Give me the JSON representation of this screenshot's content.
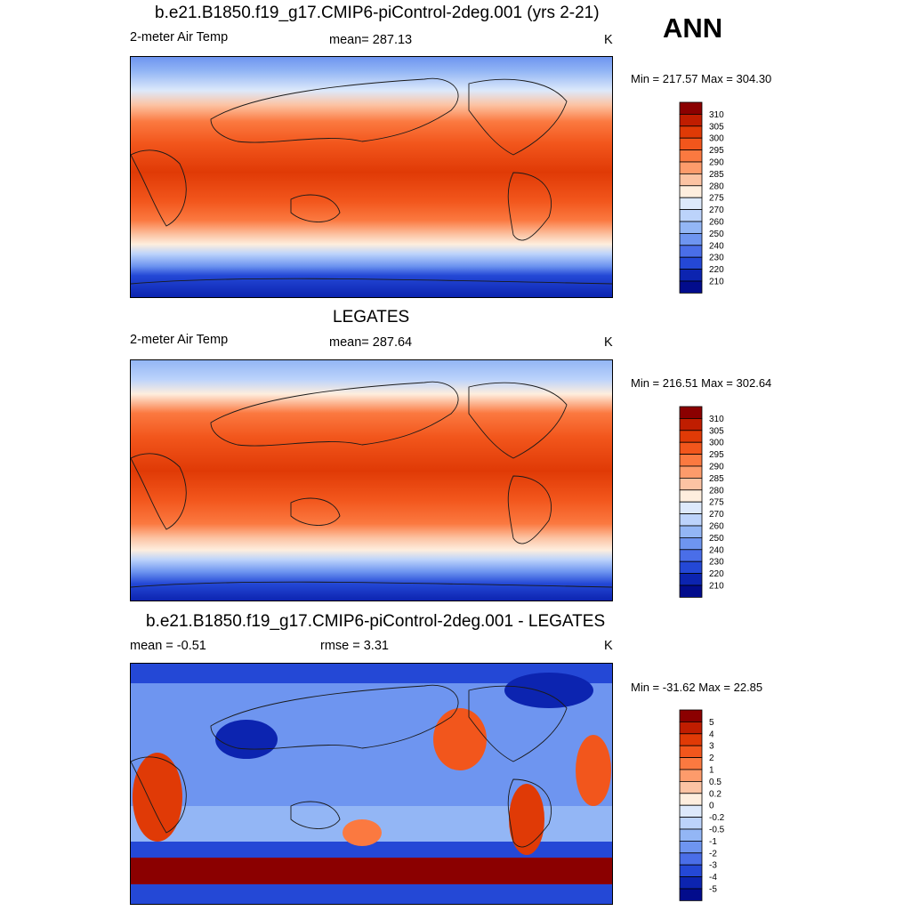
{
  "season": "ANN",
  "panels": [
    {
      "title": "b.e21.B1850.f19_g17.CMIP6-piControl-2deg.001 (yrs 2-21)",
      "left_label": "2-meter Air Temp",
      "center_label": "mean= 287.13",
      "units": "K",
      "minmax": "Min = 217.57 Max = 304.30"
    },
    {
      "title": "LEGATES",
      "left_label": "2-meter Air Temp",
      "center_label": "mean= 287.64",
      "units": "K",
      "minmax": "Min = 216.51 Max = 302.64"
    },
    {
      "title": "b.e21.B1850.f19_g17.CMIP6-piControl-2deg.001 - LEGATES",
      "left_label": "mean =  -0.51",
      "center_label": "rmse =   3.31",
      "units": "K",
      "minmax": "Min = -31.62 Max =  22.85"
    }
  ],
  "chart_data": [
    {
      "type": "heatmap",
      "title": "b.e21.B1850.f19_g17.CMIP6-piControl-2deg.001 (yrs 2-21)",
      "variable": "2-meter Air Temp",
      "units": "K",
      "mean": 287.13,
      "min": 217.57,
      "max": 304.3,
      "colorbar_levels": [
        "310",
        "305",
        "300",
        "295",
        "290",
        "285",
        "280",
        "275",
        "270",
        "260",
        "250",
        "240",
        "230",
        "220",
        "210"
      ],
      "colorbar_colors": [
        "#8b0000",
        "#c01d00",
        "#e03a06",
        "#f2561c",
        "#fb7940",
        "#fd9b6b",
        "#fcc3a3",
        "#feeede",
        "#dde9fb",
        "#bcd3fb",
        "#93b6f5",
        "#6e95f0",
        "#4a6ee8",
        "#2448d6",
        "#0c24b0",
        "#020c8c"
      ]
    },
    {
      "type": "heatmap",
      "title": "LEGATES",
      "variable": "2-meter Air Temp",
      "units": "K",
      "mean": 287.64,
      "min": 216.51,
      "max": 302.64,
      "colorbar_levels": [
        "310",
        "305",
        "300",
        "295",
        "290",
        "285",
        "280",
        "275",
        "270",
        "260",
        "250",
        "240",
        "230",
        "220",
        "210"
      ],
      "colorbar_colors": [
        "#8b0000",
        "#c01d00",
        "#e03a06",
        "#f2561c",
        "#fb7940",
        "#fd9b6b",
        "#fcc3a3",
        "#feeede",
        "#dde9fb",
        "#bcd3fb",
        "#93b6f5",
        "#6e95f0",
        "#4a6ee8",
        "#2448d6",
        "#0c24b0",
        "#020c8c"
      ]
    },
    {
      "type": "heatmap",
      "title": "b.e21.B1850.f19_g17.CMIP6-piControl-2deg.001 - LEGATES",
      "units": "K",
      "mean": -0.51,
      "rmse": 3.31,
      "min": -31.62,
      "max": 22.85,
      "colorbar_levels": [
        "5",
        "4",
        "3",
        "2",
        "1",
        "0.5",
        "0.2",
        "0",
        "-0.2",
        "-0.5",
        "-1",
        "-2",
        "-3",
        "-4",
        "-5"
      ],
      "colorbar_colors": [
        "#8b0000",
        "#c01d00",
        "#e03a06",
        "#f2561c",
        "#fb7940",
        "#fd9b6b",
        "#fcc3a3",
        "#feeede",
        "#dde9fb",
        "#bcd3fb",
        "#93b6f5",
        "#6e95f0",
        "#4a6ee8",
        "#2448d6",
        "#0c24b0",
        "#020c8c"
      ]
    }
  ]
}
